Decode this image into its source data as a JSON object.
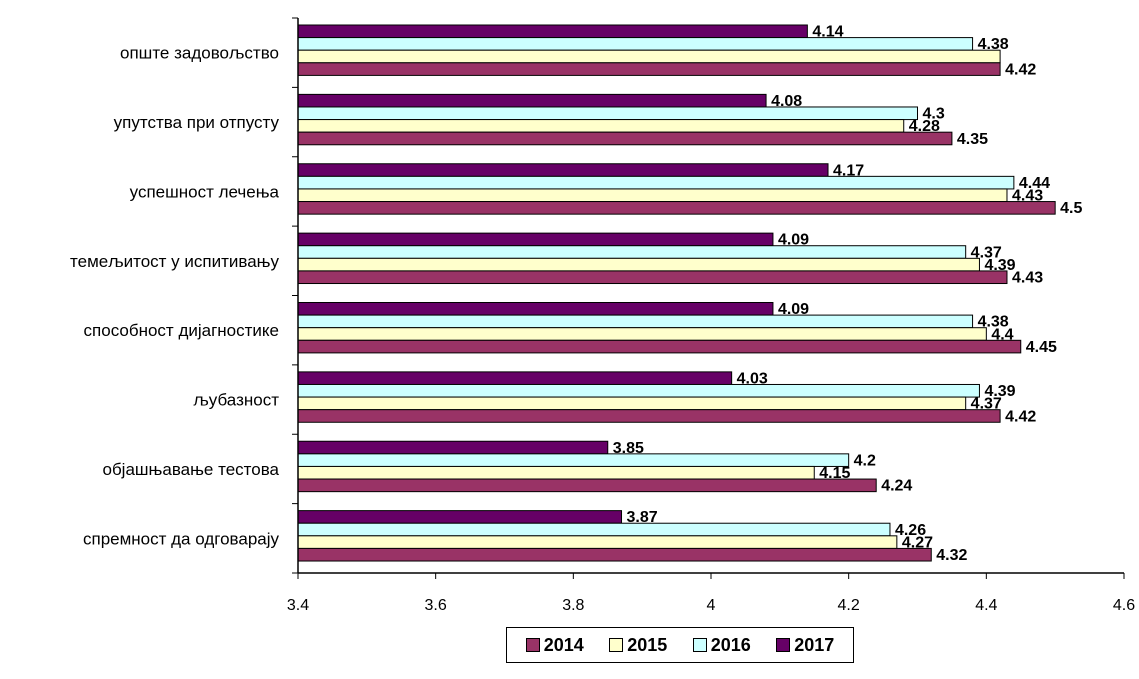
{
  "chart_data": {
    "type": "bar",
    "orientation": "horizontal",
    "title": "",
    "xlabel": "",
    "ylabel": "",
    "xlim": [
      3.4,
      4.6
    ],
    "xticks": [
      "3.4",
      "3.6",
      "3.8",
      "4",
      "4.2",
      "4.4",
      "4.6"
    ],
    "categories": [
      "опште задовољство",
      "упутства при отпусту",
      "успешност лечења",
      "темељитост у испитивању",
      "способност дијагностике",
      "љубазност",
      "објашњавање тестова",
      "спремност да одговарају"
    ],
    "series": [
      {
        "name": "2014",
        "color": "#993366",
        "values": [
          4.42,
          4.35,
          4.5,
          4.43,
          4.45,
          4.42,
          4.24,
          4.32
        ],
        "labels": [
          "4.42",
          "4.35",
          "4.5",
          "4.43",
          "4.45",
          "4.42",
          "4.24",
          "4.32"
        ]
      },
      {
        "name": "2015",
        "color": "#ffffcc",
        "values": [
          4.42,
          4.28,
          4.43,
          4.39,
          4.4,
          4.37,
          4.15,
          4.27
        ],
        "labels": [
          "",
          "4.28",
          "4.43",
          "4.39",
          "4.4",
          "4.37",
          "4.15",
          "4.27"
        ]
      },
      {
        "name": "2016",
        "color": "#ccffff",
        "values": [
          4.38,
          4.3,
          4.44,
          4.37,
          4.38,
          4.39,
          4.2,
          4.26
        ],
        "labels": [
          "4.38",
          "4.3",
          "4.44",
          "4.37",
          "4.38",
          "4.39",
          "4.2",
          "4.26"
        ]
      },
      {
        "name": "2017",
        "color": "#660066",
        "values": [
          4.14,
          4.08,
          4.17,
          4.09,
          4.09,
          4.03,
          3.85,
          3.87
        ],
        "labels": [
          "4.14",
          "4.08",
          "4.17",
          "4.09",
          "4.09",
          "4.03",
          "3.85",
          "3.87"
        ]
      }
    ],
    "legend_position": "bottom",
    "grid": false
  }
}
